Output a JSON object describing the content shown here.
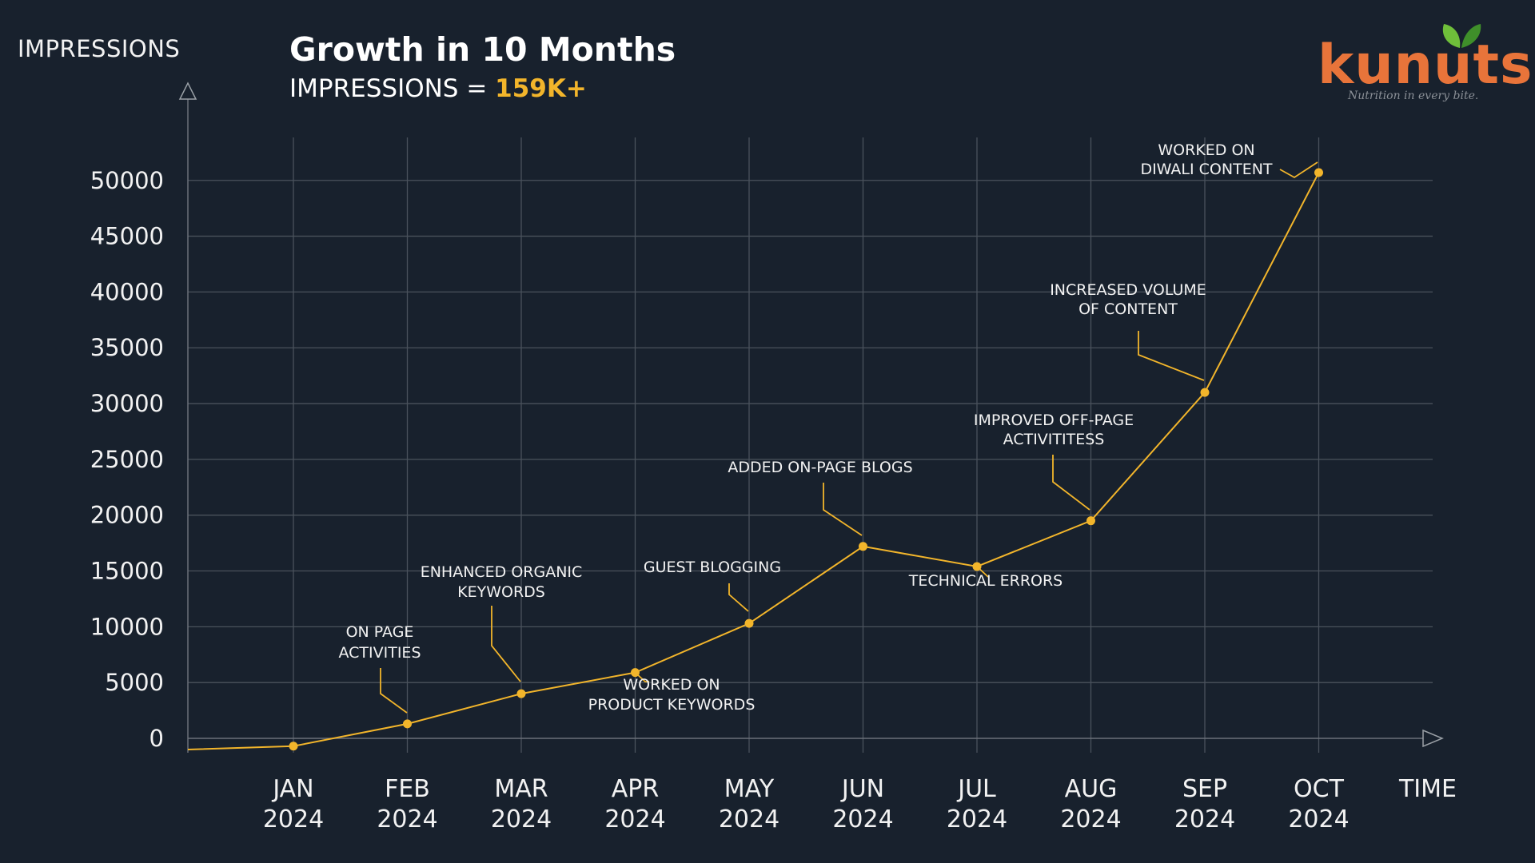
{
  "header": {
    "yaxis_title": "IMPRESSIONS",
    "title": "Growth in 10 Months",
    "subtitle_prefix": "IMPRESSIONS = ",
    "subtitle_value": "159K+"
  },
  "brand": {
    "name": "kunuts",
    "tagline": "Nutrition in every bite."
  },
  "colors": {
    "background": "#18212d",
    "line": "#f2b52b",
    "grid": "#4a525c",
    "brand": "#e8743a",
    "leaf": "#5aa832"
  },
  "chart_data": {
    "type": "line",
    "title": "Growth in 10 Months",
    "xlabel": "TIME",
    "ylabel": "IMPRESSIONS",
    "categories": [
      {
        "month": "JAN",
        "year": "2024"
      },
      {
        "month": "FEB",
        "year": "2024"
      },
      {
        "month": "MAR",
        "year": "2024"
      },
      {
        "month": "APR",
        "year": "2024"
      },
      {
        "month": "MAY",
        "year": "2024"
      },
      {
        "month": "JUN",
        "year": "2024"
      },
      {
        "month": "JUL",
        "year": "2024"
      },
      {
        "month": "AUG",
        "year": "2024"
      },
      {
        "month": "SEP",
        "year": "2024"
      },
      {
        "month": "OCT",
        "year": "2024"
      }
    ],
    "series": [
      {
        "name": "Impressions",
        "values": [
          -700,
          1300,
          4000,
          5900,
          10300,
          17200,
          15400,
          19500,
          31000,
          50700
        ]
      }
    ],
    "start_value": -1000,
    "yticks": [
      0,
      5000,
      10000,
      15000,
      20000,
      25000,
      30000,
      35000,
      40000,
      45000,
      50000
    ],
    "ylim": [
      -1000,
      54000
    ],
    "annotations": [
      {
        "index": 1,
        "lines": [
          "ON PAGE",
          "ACTIVITIES"
        ]
      },
      {
        "index": 2,
        "lines": [
          "ENHANCED ORGANIC",
          "KEYWORDS"
        ]
      },
      {
        "index": 3,
        "lines": [
          "WORKED ON",
          "PRODUCT KEYWORDS"
        ]
      },
      {
        "index": 4,
        "lines": [
          "GUEST BLOGGING"
        ]
      },
      {
        "index": 5,
        "lines": [
          "ADDED ON-PAGE BLOGS"
        ]
      },
      {
        "index": 6,
        "lines": [
          "TECHNICAL ERRORS"
        ]
      },
      {
        "index": 7,
        "lines": [
          "IMPROVED OFF-PAGE",
          "ACTIVITITESS"
        ]
      },
      {
        "index": 8,
        "lines": [
          "INCREASED VOLUME",
          "OF CONTENT"
        ]
      },
      {
        "index": 9,
        "lines": [
          "WORKED ON",
          "DIWALI CONTENT"
        ]
      }
    ]
  }
}
